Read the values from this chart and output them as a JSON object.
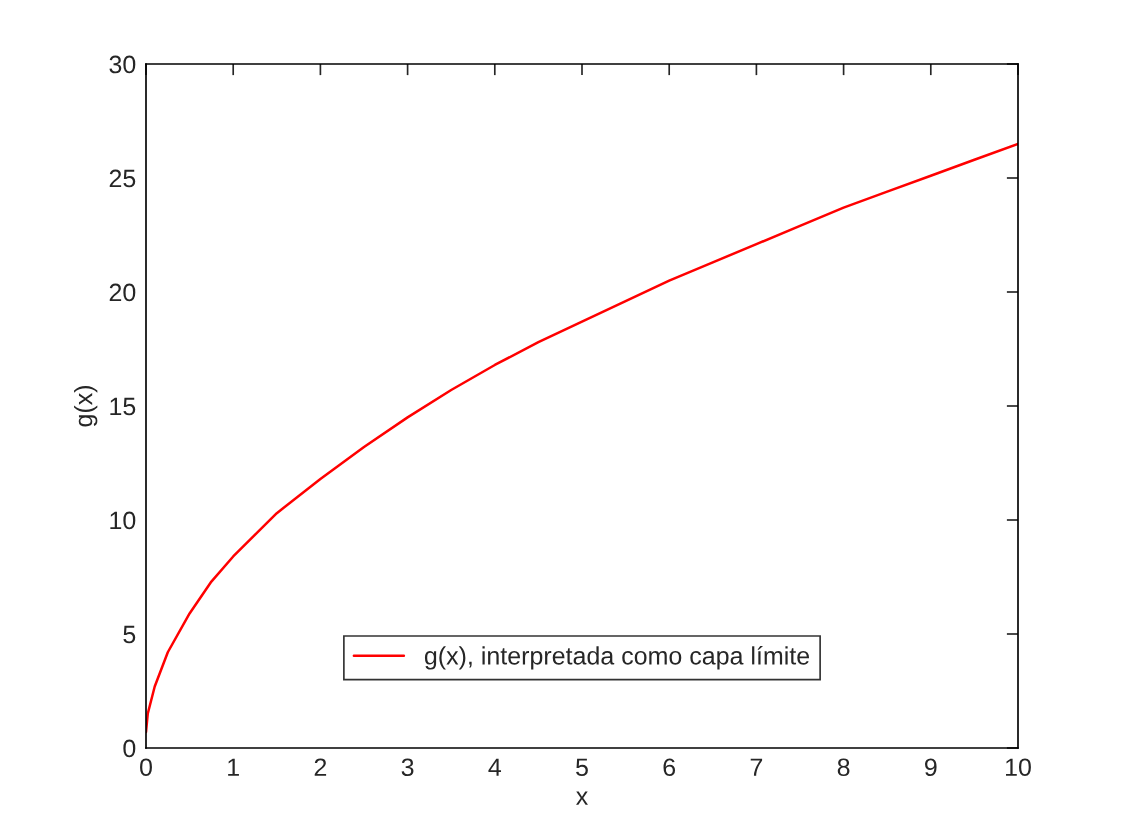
{
  "chart_data": {
    "type": "line",
    "xlabel": "x",
    "ylabel": "g(x)",
    "series": [
      {
        "name": "g(x), interpretada como capa límite",
        "color": "#ff0000",
        "x": [
          0,
          0.02,
          0.1,
          0.25,
          0.5,
          0.75,
          1,
          1.5,
          2,
          2.5,
          3,
          3.5,
          4,
          4.5,
          5,
          5.5,
          6,
          6.5,
          7,
          7.5,
          8,
          8.5,
          9,
          9.5,
          10
        ],
        "values": [
          0.7,
          1.5,
          2.7,
          4.2,
          5.9,
          7.3,
          8.4,
          10.3,
          11.8,
          13.2,
          14.5,
          15.7,
          16.8,
          17.8,
          18.7,
          19.6,
          20.5,
          21.3,
          22.1,
          22.9,
          23.7,
          24.4,
          25.1,
          25.8,
          26.5
        ]
      }
    ],
    "xlim": [
      0,
      10
    ],
    "ylim": [
      0,
      30
    ],
    "xticks": [
      0,
      1,
      2,
      3,
      4,
      5,
      6,
      7,
      8,
      9,
      10
    ],
    "yticks": [
      0,
      5,
      10,
      15,
      20,
      25,
      30
    ],
    "grid": false,
    "legend": "bottom",
    "marker": "none",
    "line_style": "solid"
  }
}
